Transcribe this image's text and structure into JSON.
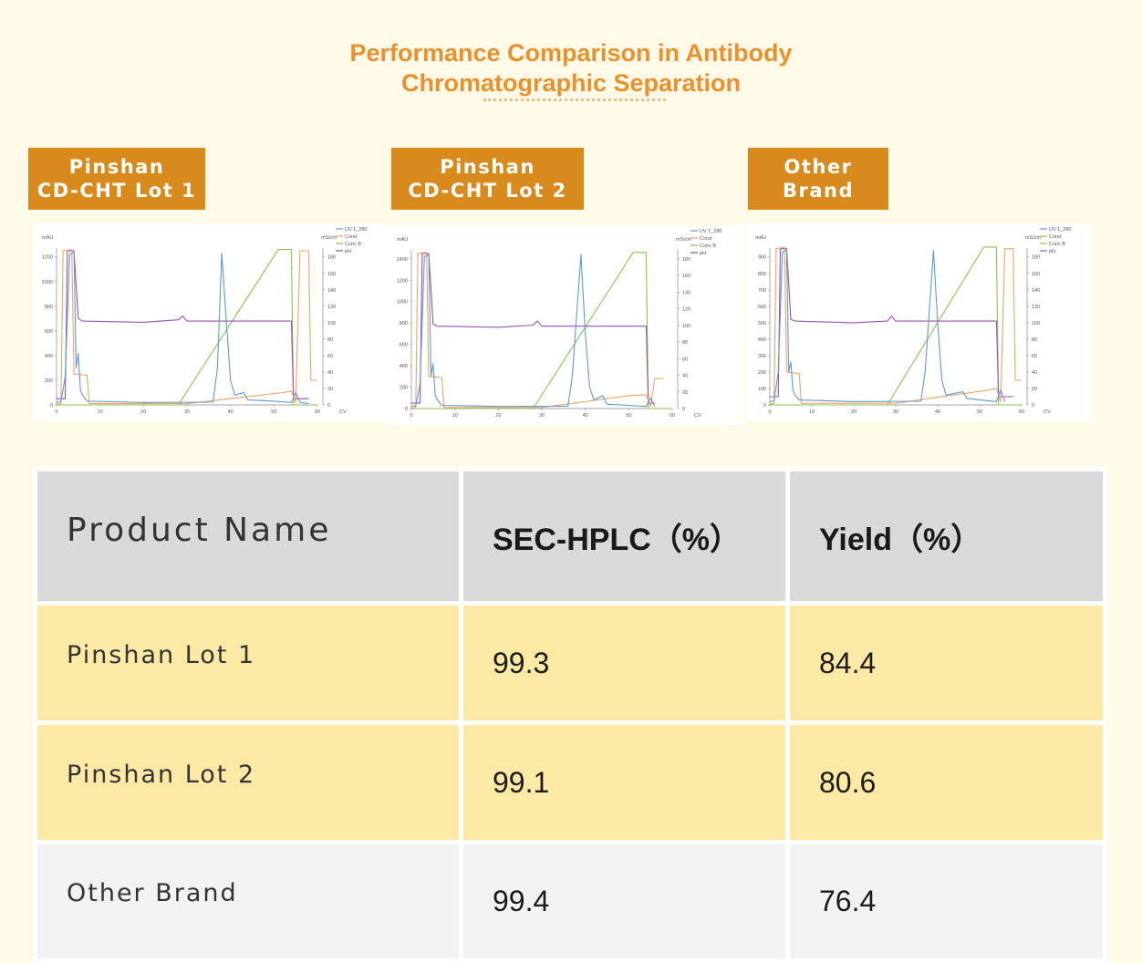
{
  "title_line1": "Performance Comparison in Antibody",
  "title_line2": "Chromatographic Separation",
  "labels": [
    {
      "line1": "Pinshan",
      "line2": "CD-CHT Lot 1"
    },
    {
      "line1": "Pinshan",
      "line2": "CD-CHT Lot 2"
    },
    {
      "line1": "Other",
      "line2": "Brand"
    }
  ],
  "chart_data": [
    {
      "type": "line",
      "ylabel_left": "mAU",
      "ylabel_right": "mS/cm",
      "xlabel": "CV",
      "xlim": [
        0,
        60
      ],
      "yticks_left": [
        0,
        200,
        400,
        600,
        800,
        1000,
        1200
      ],
      "yticks_right": [
        0,
        20,
        40,
        60,
        80,
        100,
        120,
        140,
        160,
        180
      ],
      "xticks": [
        0,
        10,
        20,
        30,
        40,
        50,
        60
      ],
      "legend": [
        "UV 1_280",
        "Cond",
        "Conc B",
        "pH"
      ],
      "colors": {
        "uv": "#5B9BD5",
        "cond": "#F4A261",
        "concb": "#8BC34A",
        "ph": "#9B4FB5"
      },
      "uv": [
        [
          0,
          20
        ],
        [
          1,
          25
        ],
        [
          2,
          230
        ],
        [
          3,
          1220
        ],
        [
          4,
          1240
        ],
        [
          4.5,
          300
        ],
        [
          5,
          420
        ],
        [
          5.5,
          120
        ],
        [
          6,
          80
        ],
        [
          7,
          30
        ],
        [
          20,
          20
        ],
        [
          36,
          22
        ],
        [
          37,
          300
        ],
        [
          38,
          1230
        ],
        [
          39,
          700
        ],
        [
          40,
          200
        ],
        [
          41,
          80
        ],
        [
          43,
          100
        ],
        [
          44,
          40
        ],
        [
          50,
          30
        ],
        [
          54,
          20
        ],
        [
          55,
          100
        ],
        [
          56,
          20
        ],
        [
          58,
          10
        ]
      ],
      "cond": [
        [
          0,
          5
        ],
        [
          1,
          8
        ],
        [
          1.5,
          1250
        ],
        [
          3.5,
          1260
        ],
        [
          4,
          250
        ],
        [
          7,
          240
        ],
        [
          7.5,
          10
        ],
        [
          30,
          10
        ],
        [
          52,
          100
        ],
        [
          54,
          110
        ],
        [
          55,
          20
        ],
        [
          56,
          1250
        ],
        [
          58,
          1250
        ],
        [
          58.5,
          200
        ],
        [
          60,
          200
        ]
      ],
      "concb": [
        [
          0,
          0
        ],
        [
          28,
          0
        ],
        [
          51,
          1260
        ],
        [
          54,
          1260
        ],
        [
          54.5,
          0
        ],
        [
          60,
          0
        ]
      ],
      "ph": [
        [
          0,
          50
        ],
        [
          2,
          50
        ],
        [
          2.5,
          1250
        ],
        [
          4,
          1250
        ],
        [
          5,
          700
        ],
        [
          6,
          680
        ],
        [
          20,
          670
        ],
        [
          28,
          690
        ],
        [
          29,
          720
        ],
        [
          30,
          680
        ],
        [
          54,
          680
        ],
        [
          54.5,
          50
        ],
        [
          58,
          50
        ]
      ]
    },
    {
      "type": "line",
      "ylabel_left": "mAU",
      "ylabel_right": "mS/cm",
      "xlabel": "CV",
      "xlim": [
        0,
        60
      ],
      "yticks_left": [
        0,
        200,
        400,
        600,
        800,
        1000,
        1200,
        1400
      ],
      "yticks_right": [
        0,
        20,
        40,
        60,
        80,
        100,
        120,
        140,
        160,
        180
      ],
      "xticks": [
        0,
        10,
        20,
        30,
        40,
        50,
        60
      ],
      "legend": [
        "UV 1_280",
        "Cond",
        "Conc B",
        "pH"
      ],
      "colors": {
        "uv": "#5B9BD5",
        "cond": "#F4A261",
        "concb": "#8BC34A",
        "ph": "#9B4FB5"
      },
      "uv": [
        [
          0,
          20
        ],
        [
          1,
          25
        ],
        [
          2,
          230
        ],
        [
          3,
          1420
        ],
        [
          4,
          1440
        ],
        [
          4.5,
          300
        ],
        [
          5,
          420
        ],
        [
          5.5,
          120
        ],
        [
          6,
          80
        ],
        [
          7,
          30
        ],
        [
          20,
          20
        ],
        [
          36,
          22
        ],
        [
          37,
          300
        ],
        [
          39,
          1440
        ],
        [
          40,
          700
        ],
        [
          41,
          200
        ],
        [
          42,
          80
        ],
        [
          44,
          120
        ],
        [
          45,
          40
        ],
        [
          50,
          30
        ],
        [
          54,
          20
        ],
        [
          55,
          100
        ],
        [
          56,
          20
        ]
      ],
      "cond": [
        [
          0,
          5
        ],
        [
          1,
          8
        ],
        [
          1.5,
          1450
        ],
        [
          3.5,
          1460
        ],
        [
          4,
          300
        ],
        [
          7,
          290
        ],
        [
          7.5,
          10
        ],
        [
          30,
          10
        ],
        [
          50,
          120
        ],
        [
          54,
          130
        ],
        [
          55,
          20
        ],
        [
          56,
          280
        ],
        [
          58,
          280
        ]
      ],
      "concb": [
        [
          0,
          0
        ],
        [
          28,
          0
        ],
        [
          51,
          1460
        ],
        [
          54,
          1460
        ],
        [
          54.5,
          0
        ],
        [
          60,
          0
        ]
      ],
      "ph": [
        [
          0,
          50
        ],
        [
          2,
          50
        ],
        [
          2.5,
          1450
        ],
        [
          4,
          1450
        ],
        [
          5,
          790
        ],
        [
          6,
          770
        ],
        [
          20,
          760
        ],
        [
          28,
          780
        ],
        [
          29,
          820
        ],
        [
          30,
          770
        ],
        [
          54,
          770
        ],
        [
          54.5,
          50
        ],
        [
          56,
          50
        ]
      ]
    },
    {
      "type": "line",
      "ylabel_left": "mAU",
      "ylabel_right": "mS/cm",
      "xlabel": "CV",
      "xlim": [
        0,
        60
      ],
      "yticks_left": [
        0,
        100,
        200,
        300,
        400,
        500,
        600,
        700,
        800,
        900
      ],
      "yticks_right": [
        0,
        20,
        40,
        60,
        80,
        100,
        120,
        140,
        160,
        180
      ],
      "xticks": [
        0,
        10,
        20,
        30,
        40,
        50,
        60
      ],
      "legend": [
        "UV 1_280",
        "Cond",
        "Conc B",
        "pH"
      ],
      "colors": {
        "uv": "#5B9BD5",
        "cond": "#F4A261",
        "concb": "#8BC34A",
        "ph": "#9B4FB5"
      },
      "uv": [
        [
          0,
          20
        ],
        [
          1,
          25
        ],
        [
          2,
          200
        ],
        [
          3,
          930
        ],
        [
          4,
          940
        ],
        [
          4.5,
          200
        ],
        [
          5,
          260
        ],
        [
          5.5,
          90
        ],
        [
          6,
          60
        ],
        [
          7,
          30
        ],
        [
          20,
          20
        ],
        [
          36,
          22
        ],
        [
          37,
          200
        ],
        [
          39,
          940
        ],
        [
          40,
          500
        ],
        [
          41,
          150
        ],
        [
          42,
          60
        ],
        [
          46,
          80
        ],
        [
          47,
          40
        ],
        [
          50,
          30
        ],
        [
          54,
          20
        ],
        [
          55,
          90
        ],
        [
          56,
          20
        ]
      ],
      "cond": [
        [
          0,
          5
        ],
        [
          1,
          8
        ],
        [
          1.5,
          950
        ],
        [
          3.5,
          960
        ],
        [
          4,
          200
        ],
        [
          7,
          190
        ],
        [
          7.5,
          10
        ],
        [
          30,
          10
        ],
        [
          52,
          90
        ],
        [
          54,
          100
        ],
        [
          55,
          20
        ],
        [
          56,
          950
        ],
        [
          58,
          950
        ],
        [
          58.5,
          150
        ],
        [
          60,
          150
        ]
      ],
      "concb": [
        [
          0,
          0
        ],
        [
          28,
          0
        ],
        [
          51,
          960
        ],
        [
          54,
          960
        ],
        [
          54.5,
          0
        ],
        [
          60,
          0
        ]
      ],
      "ph": [
        [
          0,
          50
        ],
        [
          2,
          50
        ],
        [
          2.5,
          950
        ],
        [
          4,
          950
        ],
        [
          5,
          520
        ],
        [
          6,
          510
        ],
        [
          20,
          500
        ],
        [
          28,
          510
        ],
        [
          29,
          540
        ],
        [
          30,
          510
        ],
        [
          54,
          510
        ],
        [
          54.5,
          50
        ],
        [
          58,
          50
        ]
      ]
    }
  ],
  "table": {
    "headers": [
      "Product Name",
      "SEC-HPLC（%）",
      "Yield（%）"
    ],
    "rows": [
      [
        "Pinshan Lot 1",
        "99.3",
        "84.4"
      ],
      [
        "Pinshan Lot 2",
        "99.1",
        "80.6"
      ],
      [
        "Other Brand",
        "99.4",
        "76.4"
      ]
    ]
  }
}
